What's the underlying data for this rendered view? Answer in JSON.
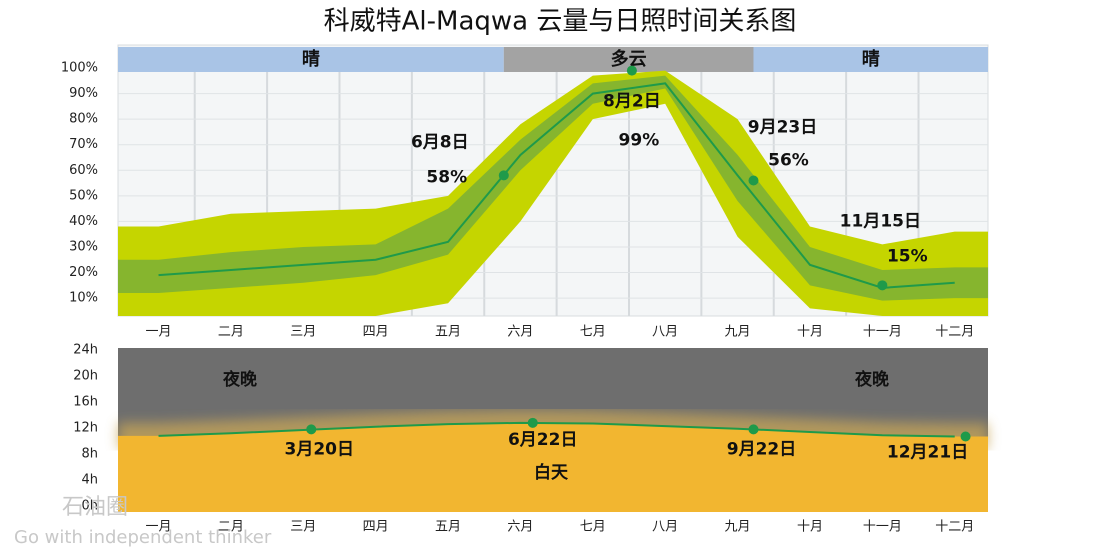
{
  "title": "科威特Al-Maqwa 云量与日照时间关系图",
  "watermark": {
    "logo": "石油圈",
    "slogan": "Go with independent thinker"
  },
  "chart_data": [
    {
      "type": "band-line",
      "xlim": [
        -0.56,
        11.46
      ],
      "xticks": [
        {
          "value": 0,
          "label": "一月"
        },
        {
          "value": 1,
          "label": "二月"
        },
        {
          "value": 2,
          "label": "三月"
        },
        {
          "value": 3,
          "label": "四月"
        },
        {
          "value": 4,
          "label": "五月"
        },
        {
          "value": 5,
          "label": "六月"
        },
        {
          "value": 6,
          "label": "七月"
        },
        {
          "value": 7,
          "label": "八月"
        },
        {
          "value": 8,
          "label": "九月"
        },
        {
          "value": 9,
          "label": "十月"
        },
        {
          "value": 10,
          "label": "十一月"
        },
        {
          "value": 11,
          "label": "十二月"
        }
      ],
      "ylim": [
        3,
        109
      ],
      "yticks": [
        {
          "value": 10,
          "label": "10%"
        },
        {
          "value": 20,
          "label": "20%"
        },
        {
          "value": 30,
          "label": "30%"
        },
        {
          "value": 40,
          "label": "40%"
        },
        {
          "value": 50,
          "label": "50%"
        },
        {
          "value": 60,
          "label": "60%"
        },
        {
          "value": 70,
          "label": "70%"
        },
        {
          "value": 80,
          "label": "80%"
        },
        {
          "value": 90,
          "label": "90%"
        },
        {
          "value": 100,
          "label": "100%"
        }
      ],
      "grid": true,
      "regions": [
        {
          "label": "晴",
          "from": -0.56,
          "to": 4.77,
          "color": "#a9c4e6"
        },
        {
          "label": "多云",
          "from": 4.77,
          "to": 8.22,
          "color": "#a3a3a3"
        },
        {
          "label": "晴",
          "from": 8.22,
          "to": 11.46,
          "color": "#a9c4e6"
        }
      ],
      "x": [
        0,
        1,
        2,
        3,
        4,
        5,
        6,
        7,
        8,
        9,
        10,
        11
      ],
      "bands": [
        {
          "color": "#c5d500",
          "low": [
            3,
            3,
            3,
            3,
            8,
            40,
            80,
            86,
            34,
            6,
            3,
            3
          ],
          "high": [
            38,
            43,
            44,
            45,
            50,
            78,
            97,
            99,
            80,
            38,
            31,
            36
          ]
        },
        {
          "color": "#86b52e",
          "low": [
            12,
            14,
            16,
            19,
            27,
            60,
            86,
            92,
            48,
            15,
            9,
            10
          ],
          "high": [
            25,
            28,
            30,
            31,
            45,
            72,
            94,
            97,
            66,
            30,
            21,
            22
          ]
        }
      ],
      "series": [
        {
          "color": "#1f9a4a",
          "values": [
            19,
            21,
            23,
            25,
            32,
            66,
            90,
            94,
            58,
            23,
            14,
            16
          ]
        }
      ],
      "points": [
        {
          "x": 4.77,
          "value": 58,
          "value_label": "58%",
          "label": "6月8日"
        },
        {
          "x": 6.54,
          "value": 99,
          "value_label": "99%",
          "label": "8月2日"
        },
        {
          "x": 8.22,
          "value": 56,
          "value_label": "56%",
          "label": "9月23日"
        },
        {
          "x": 10.0,
          "value": 15,
          "value_label": "15%",
          "label": "11月15日"
        }
      ]
    },
    {
      "type": "daylight",
      "xlim": [
        -0.56,
        11.46
      ],
      "xticks": [
        {
          "value": 0,
          "label": "一月"
        },
        {
          "value": 1,
          "label": "二月"
        },
        {
          "value": 2,
          "label": "三月"
        },
        {
          "value": 3,
          "label": "四月"
        },
        {
          "value": 4,
          "label": "五月"
        },
        {
          "value": 5,
          "label": "六月"
        },
        {
          "value": 6,
          "label": "七月"
        },
        {
          "value": 7,
          "label": "八月"
        },
        {
          "value": 8,
          "label": "九月"
        },
        {
          "value": 9,
          "label": "十月"
        },
        {
          "value": 10,
          "label": "十一月"
        },
        {
          "value": 11,
          "label": "十二月"
        }
      ],
      "ylim": [
        -0.9,
        24.3
      ],
      "yticks": [
        {
          "value": 0,
          "label": "0h"
        },
        {
          "value": 4,
          "label": "4h"
        },
        {
          "value": 8,
          "label": "8h"
        },
        {
          "value": 12,
          "label": "12h"
        },
        {
          "value": 16,
          "label": "16h"
        },
        {
          "value": 20,
          "label": "20h"
        },
        {
          "value": 24,
          "label": "24h"
        }
      ],
      "night_color": "#6e6e6e",
      "day_color": "#f2b630",
      "region_labels": [
        {
          "text": "夜晚"
        },
        {
          "text": "夜晚"
        },
        {
          "text": "白天"
        }
      ],
      "x": [
        0,
        1,
        2,
        3,
        4,
        5,
        6,
        7,
        8,
        9,
        10,
        11
      ],
      "series": [
        {
          "color": "#1f9a4a",
          "values": [
            10.8,
            11.2,
            11.7,
            12.2,
            12.6,
            12.8,
            12.7,
            12.3,
            11.9,
            11.4,
            10.9,
            10.7
          ]
        }
      ],
      "points": [
        {
          "x": 2.11,
          "value": 11.8,
          "label": "3月20日"
        },
        {
          "x": 5.17,
          "value": 12.8,
          "label": "6月22日"
        },
        {
          "x": 8.22,
          "value": 11.8,
          "label": "9月22日"
        },
        {
          "x": 11.15,
          "value": 10.7,
          "label": "12月21日"
        }
      ]
    }
  ]
}
